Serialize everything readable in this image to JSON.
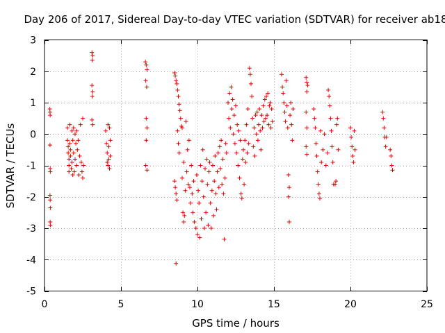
{
  "chart_data": {
    "type": "scatter",
    "title": "Day 206 of 2017, Sidereal Day-to-day VTEC variation (SDTVAR) for receiver ab18",
    "xlabel": "GPS time / hours",
    "ylabel": "SDTVAR / TECUs",
    "xlim": [
      0,
      25
    ],
    "ylim": [
      -5,
      3
    ],
    "xticks": [
      0,
      5,
      10,
      15,
      20,
      25
    ],
    "yticks": [
      -5,
      -4,
      -3,
      -2,
      -1,
      0,
      1,
      2,
      3
    ],
    "xtick_labels": [
      "0",
      "5",
      "10",
      "15",
      "20",
      "25"
    ],
    "ytick_labels": [
      "-5",
      "-4",
      "-3",
      "-2",
      "-1",
      "0",
      "1",
      "2",
      "3"
    ],
    "grid": true,
    "marker": "+",
    "color": "#e00000",
    "series": [
      {
        "name": "ab18",
        "points": [
          [
            0.35,
            0.8
          ],
          [
            0.36,
            0.7
          ],
          [
            0.37,
            0.6
          ],
          [
            0.36,
            -0.35
          ],
          [
            0.37,
            -1.1
          ],
          [
            0.38,
            -1.2
          ],
          [
            0.36,
            -1.95
          ],
          [
            0.37,
            -2.1
          ],
          [
            0.38,
            -2.35
          ],
          [
            0.37,
            -2.8
          ],
          [
            0.38,
            -2.9
          ],
          [
            1.5,
            0.2
          ],
          [
            1.5,
            -0.2
          ],
          [
            1.55,
            -0.4
          ],
          [
            1.55,
            -0.6
          ],
          [
            1.6,
            -0.8
          ],
          [
            1.6,
            -1.0
          ],
          [
            1.6,
            -1.2
          ],
          [
            1.65,
            0.3
          ],
          [
            1.65,
            -0.3
          ],
          [
            1.7,
            -0.5
          ],
          [
            1.7,
            -0.7
          ],
          [
            1.75,
            -1.1
          ],
          [
            1.8,
            0.1
          ],
          [
            1.8,
            -0.9
          ],
          [
            1.85,
            -0.2
          ],
          [
            1.85,
            -1.3
          ],
          [
            1.9,
            0.2
          ],
          [
            1.9,
            -0.6
          ],
          [
            1.95,
            -1.2
          ],
          [
            2.0,
            0.0
          ],
          [
            2.0,
            -0.8
          ],
          [
            2.05,
            -0.3
          ],
          [
            2.1,
            0.1
          ],
          [
            2.1,
            -1.0
          ],
          [
            2.15,
            -0.5
          ],
          [
            2.2,
            -0.2
          ],
          [
            2.25,
            -1.3
          ],
          [
            2.3,
            -0.7
          ],
          [
            2.35,
            0.3
          ],
          [
            2.4,
            -0.9
          ],
          [
            2.45,
            -1.2
          ],
          [
            2.5,
            0.5
          ],
          [
            2.5,
            -1.4
          ],
          [
            2.55,
            -1.0
          ],
          [
            3.1,
            2.6
          ],
          [
            3.15,
            2.5
          ],
          [
            3.12,
            2.35
          ],
          [
            3.1,
            1.55
          ],
          [
            3.15,
            1.35
          ],
          [
            3.12,
            1.2
          ],
          [
            3.1,
            0.45
          ],
          [
            3.15,
            0.3
          ],
          [
            4.0,
            0.1
          ],
          [
            4.05,
            -0.3
          ],
          [
            4.1,
            -0.6
          ],
          [
            4.1,
            -0.9
          ],
          [
            4.15,
            0.3
          ],
          [
            4.15,
            -1.0
          ],
          [
            4.2,
            -0.4
          ],
          [
            4.2,
            -0.8
          ],
          [
            4.25,
            0.2
          ],
          [
            4.25,
            -1.1
          ],
          [
            4.3,
            -0.2
          ],
          [
            4.3,
            -0.7
          ],
          [
            6.6,
            2.3
          ],
          [
            6.65,
            2.2
          ],
          [
            6.7,
            2.05
          ],
          [
            6.62,
            1.7
          ],
          [
            6.68,
            1.5
          ],
          [
            6.65,
            0.5
          ],
          [
            6.7,
            0.2
          ],
          [
            6.65,
            -0.2
          ],
          [
            6.62,
            -1.0
          ],
          [
            6.7,
            -1.15
          ],
          [
            8.5,
            1.95
          ],
          [
            8.55,
            1.85
          ],
          [
            8.6,
            1.7
          ],
          [
            8.65,
            1.6
          ],
          [
            8.7,
            1.4
          ],
          [
            8.75,
            1.2
          ],
          [
            8.8,
            0.95
          ],
          [
            8.85,
            0.75
          ],
          [
            8.9,
            0.5
          ],
          [
            8.95,
            0.25
          ],
          [
            8.5,
            -1.5
          ],
          [
            8.55,
            -1.7
          ],
          [
            8.6,
            -1.9
          ],
          [
            8.65,
            -2.1
          ],
          [
            8.6,
            -4.12
          ],
          [
            8.7,
            0.1
          ],
          [
            8.75,
            -0.3
          ],
          [
            8.8,
            -0.6
          ],
          [
            9.0,
            0.2
          ],
          [
            9.0,
            -1.4
          ],
          [
            9.05,
            -2.5
          ],
          [
            9.1,
            -2.8
          ],
          [
            9.1,
            -0.9
          ],
          [
            9.15,
            -2.6
          ],
          [
            9.2,
            -1.8
          ],
          [
            9.25,
            0.4
          ],
          [
            9.3,
            -1.2
          ],
          [
            9.35,
            -0.5
          ],
          [
            9.4,
            -1.6
          ],
          [
            9.45,
            -0.2
          ],
          [
            9.5,
            -1.7
          ],
          [
            9.55,
            -2.2
          ],
          [
            9.6,
            -1.0
          ],
          [
            9.65,
            -1.9
          ],
          [
            9.7,
            -2.5
          ],
          [
            9.75,
            -1.5
          ],
          [
            9.8,
            -2.8
          ],
          [
            9.9,
            -3.0
          ],
          [
            9.95,
            -1.3
          ],
          [
            10.0,
            -3.2
          ],
          [
            10.05,
            -1.8
          ],
          [
            10.1,
            -2.2
          ],
          [
            10.15,
            -3.3
          ],
          [
            10.2,
            -1.0
          ],
          [
            10.25,
            -2.7
          ],
          [
            10.3,
            -1.5
          ],
          [
            10.35,
            -0.5
          ],
          [
            10.4,
            -2.0
          ],
          [
            10.45,
            -3.0
          ],
          [
            10.5,
            -1.1
          ],
          [
            10.55,
            -2.5
          ],
          [
            10.6,
            -0.8
          ],
          [
            10.65,
            -1.6
          ],
          [
            10.7,
            -2.9
          ],
          [
            10.75,
            -1.2
          ],
          [
            10.8,
            -0.9
          ],
          [
            10.85,
            -2.2
          ],
          [
            10.9,
            -3.0
          ],
          [
            10.95,
            -1.8
          ],
          [
            11.0,
            -1.0
          ],
          [
            11.05,
            -2.6
          ],
          [
            11.1,
            -1.5
          ],
          [
            11.15,
            -0.7
          ],
          [
            11.2,
            -1.9
          ],
          [
            11.25,
            -2.4
          ],
          [
            11.3,
            -1.2
          ],
          [
            11.35,
            -0.6
          ],
          [
            11.4,
            -1.7
          ],
          [
            11.45,
            -0.4
          ],
          [
            11.5,
            -1.1
          ],
          [
            11.55,
            -0.2
          ],
          [
            11.6,
            -1.6
          ],
          [
            11.65,
            -0.8
          ],
          [
            11.7,
            -1.9
          ],
          [
            11.75,
            -3.35
          ],
          [
            11.8,
            -1.4
          ],
          [
            11.85,
            -0.3
          ],
          [
            11.9,
            -0.6
          ],
          [
            12.0,
            1.0
          ],
          [
            12.05,
            0.5
          ],
          [
            12.1,
            1.3
          ],
          [
            12.15,
            0.2
          ],
          [
            12.2,
            1.5
          ],
          [
            12.25,
            0.8
          ],
          [
            12.3,
            1.1
          ],
          [
            12.35,
            0.0
          ],
          [
            12.4,
            0.6
          ],
          [
            12.45,
            -0.3
          ],
          [
            12.5,
            0.9
          ],
          [
            12.55,
            -0.6
          ],
          [
            12.6,
            0.3
          ],
          [
            12.65,
            -1.0
          ],
          [
            12.7,
            0.1
          ],
          [
            12.75,
            -1.4
          ],
          [
            12.8,
            -0.2
          ],
          [
            12.85,
            -1.9
          ],
          [
            12.9,
            -2.05
          ],
          [
            12.95,
            -0.8
          ],
          [
            13.0,
            -0.5
          ],
          [
            13.05,
            -1.6
          ],
          [
            13.1,
            -0.2
          ],
          [
            13.15,
            -0.9
          ],
          [
            13.2,
            0.3
          ],
          [
            13.25,
            -0.6
          ],
          [
            13.3,
            0.8
          ],
          [
            13.35,
            -0.3
          ],
          [
            13.4,
            2.1
          ],
          [
            13.45,
            1.9
          ],
          [
            13.5,
            1.6
          ],
          [
            13.55,
            1.2
          ],
          [
            13.6,
            0.5
          ],
          [
            13.65,
            -0.4
          ],
          [
            13.7,
            0.2
          ],
          [
            13.75,
            -0.7
          ],
          [
            13.8,
            0.6
          ],
          [
            13.85,
            0.0
          ],
          [
            13.9,
            0.7
          ],
          [
            13.95,
            -0.2
          ],
          [
            14.0,
            0.3
          ],
          [
            14.05,
            0.8
          ],
          [
            14.1,
            0.1
          ],
          [
            14.15,
            -0.5
          ],
          [
            14.2,
            0.6
          ],
          [
            14.25,
            0.2
          ],
          [
            14.3,
            0.9
          ],
          [
            14.35,
            0.4
          ],
          [
            14.4,
            1.1
          ],
          [
            14.45,
            0.5
          ],
          [
            14.5,
            1.2
          ],
          [
            14.55,
            0.6
          ],
          [
            14.6,
            1.3
          ],
          [
            14.65,
            0.3
          ],
          [
            14.7,
            0.9
          ],
          [
            14.75,
            1.0
          ],
          [
            14.8,
            0.2
          ],
          [
            14.85,
            0.8
          ],
          [
            14.9,
            0.4
          ],
          [
            15.5,
            1.9
          ],
          [
            15.55,
            1.5
          ],
          [
            15.6,
            1.3
          ],
          [
            15.65,
            1.0
          ],
          [
            15.7,
            0.7
          ],
          [
            15.75,
            0.4
          ],
          [
            15.8,
            1.7
          ],
          [
            15.85,
            0.9
          ],
          [
            15.9,
            0.2
          ],
          [
            15.95,
            -1.3
          ],
          [
            16.0,
            -1.7
          ],
          [
            15.95,
            -2.0
          ],
          [
            16.0,
            -2.8
          ],
          [
            16.05,
            0.6
          ],
          [
            16.1,
            1.0
          ],
          [
            16.15,
            0.3
          ],
          [
            16.2,
            -0.2
          ],
          [
            16.25,
            0.8
          ],
          [
            17.1,
            1.8
          ],
          [
            17.15,
            1.65
          ],
          [
            17.2,
            1.55
          ],
          [
            17.15,
            1.35
          ],
          [
            17.1,
            0.7
          ],
          [
            17.15,
            0.2
          ],
          [
            17.1,
            -0.4
          ],
          [
            17.15,
            -0.65
          ],
          [
            17.6,
            0.8
          ],
          [
            17.65,
            0.5
          ],
          [
            17.7,
            0.2
          ],
          [
            17.75,
            -0.3
          ],
          [
            17.8,
            -0.7
          ],
          [
            17.85,
            -1.2
          ],
          [
            17.9,
            -1.6
          ],
          [
            17.95,
            -1.9
          ],
          [
            18.0,
            -2.05
          ],
          [
            18.05,
            0.1
          ],
          [
            18.1,
            -0.9
          ],
          [
            18.2,
            -0.5
          ],
          [
            18.3,
            0.0
          ],
          [
            18.4,
            -1.0
          ],
          [
            18.5,
            -0.6
          ],
          [
            18.55,
            1.4
          ],
          [
            18.6,
            1.2
          ],
          [
            18.65,
            0.9
          ],
          [
            18.7,
            0.5
          ],
          [
            18.75,
            0.1
          ],
          [
            18.8,
            -0.4
          ],
          [
            18.85,
            -0.9
          ],
          [
            18.9,
            -1.6
          ],
          [
            19.0,
            -1.6
          ],
          [
            19.05,
            -1.5
          ],
          [
            19.1,
            0.3
          ],
          [
            19.15,
            0.5
          ],
          [
            19.2,
            -0.5
          ],
          [
            20.0,
            0.2
          ],
          [
            20.05,
            -0.1
          ],
          [
            20.1,
            -0.4
          ],
          [
            20.15,
            -0.7
          ],
          [
            20.2,
            -0.9
          ],
          [
            20.25,
            0.1
          ],
          [
            20.3,
            -0.5
          ],
          [
            22.1,
            0.7
          ],
          [
            22.15,
            0.5
          ],
          [
            22.2,
            0.2
          ],
          [
            22.25,
            -0.1
          ],
          [
            22.3,
            -0.4
          ],
          [
            22.35,
            -0.1
          ],
          [
            22.6,
            -0.5
          ],
          [
            22.65,
            -0.7
          ],
          [
            22.7,
            -1.0
          ],
          [
            22.75,
            -1.15
          ]
        ]
      }
    ]
  }
}
